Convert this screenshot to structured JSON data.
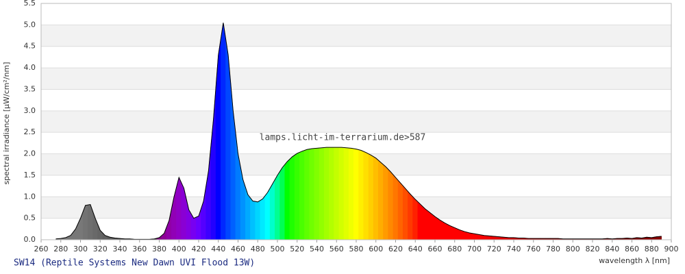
{
  "chart_data": {
    "type": "spectrum",
    "title": "SW14 (Reptile Systems New Dawn UVI Flood 13W)",
    "watermark": "lamps.licht-im-terrarium.de>587",
    "x_label": "wavelength λ [nm]",
    "y_label": "spectral irradiance [µW/cm²/nm]",
    "x": [
      275,
      280,
      285,
      290,
      295,
      300,
      305,
      310,
      315,
      320,
      325,
      330,
      335,
      340,
      345,
      350,
      355,
      360,
      365,
      370,
      375,
      380,
      385,
      390,
      395,
      400,
      405,
      410,
      415,
      420,
      425,
      430,
      435,
      440,
      445,
      450,
      455,
      460,
      465,
      470,
      475,
      480,
      485,
      490,
      495,
      500,
      505,
      510,
      515,
      520,
      525,
      530,
      535,
      540,
      545,
      550,
      555,
      560,
      565,
      570,
      575,
      580,
      585,
      590,
      595,
      600,
      605,
      610,
      615,
      620,
      625,
      630,
      635,
      640,
      645,
      650,
      655,
      660,
      665,
      670,
      675,
      680,
      685,
      690,
      695,
      700,
      705,
      710,
      715,
      720,
      725,
      730,
      735,
      740,
      745,
      750,
      755,
      760,
      765,
      770,
      775,
      780,
      785,
      790,
      795,
      800,
      805,
      810,
      815,
      820,
      825,
      830,
      835,
      840,
      845,
      850,
      855,
      860,
      865,
      870,
      875,
      880,
      885,
      890
    ],
    "values": [
      0.02,
      0.03,
      0.05,
      0.1,
      0.25,
      0.5,
      0.8,
      0.82,
      0.5,
      0.22,
      0.1,
      0.06,
      0.04,
      0.03,
      0.02,
      0.02,
      0.01,
      0.01,
      0.01,
      0.01,
      0.02,
      0.05,
      0.15,
      0.45,
      1.0,
      1.45,
      1.2,
      0.7,
      0.5,
      0.55,
      0.9,
      1.6,
      2.8,
      4.3,
      5.05,
      4.3,
      3.0,
      2.0,
      1.4,
      1.05,
      0.9,
      0.88,
      0.95,
      1.1,
      1.3,
      1.5,
      1.68,
      1.82,
      1.93,
      2.01,
      2.06,
      2.1,
      2.12,
      2.13,
      2.14,
      2.15,
      2.15,
      2.15,
      2.15,
      2.14,
      2.13,
      2.11,
      2.08,
      2.03,
      1.97,
      1.9,
      1.8,
      1.7,
      1.58,
      1.45,
      1.32,
      1.19,
      1.06,
      0.94,
      0.83,
      0.72,
      0.63,
      0.54,
      0.46,
      0.39,
      0.33,
      0.28,
      0.23,
      0.19,
      0.16,
      0.14,
      0.12,
      0.1,
      0.09,
      0.08,
      0.07,
      0.06,
      0.05,
      0.05,
      0.04,
      0.04,
      0.03,
      0.03,
      0.03,
      0.03,
      0.03,
      0.03,
      0.03,
      0.02,
      0.02,
      0.02,
      0.02,
      0.02,
      0.02,
      0.02,
      0.02,
      0.02,
      0.03,
      0.02,
      0.03,
      0.03,
      0.04,
      0.03,
      0.05,
      0.04,
      0.06,
      0.05,
      0.07,
      0.08
    ],
    "xlim": [
      260,
      900
    ],
    "xticks": [
      260,
      280,
      300,
      320,
      340,
      360,
      380,
      400,
      420,
      440,
      460,
      480,
      500,
      520,
      540,
      560,
      580,
      600,
      620,
      640,
      660,
      680,
      700,
      720,
      740,
      760,
      780,
      800,
      820,
      840,
      860,
      880,
      900
    ],
    "ylim": [
      0,
      5.5
    ],
    "yticks": [
      {
        "value": 0,
        "label": "0.0"
      },
      0.5,
      {
        "value": 1,
        "label": "1.0"
      },
      1.5,
      {
        "value": 2,
        "label": "2.0"
      },
      2.5,
      {
        "value": 3,
        "label": "3.0"
      },
      3.5,
      {
        "value": 4,
        "label": "4.0"
      },
      4.5,
      {
        "value": 5,
        "label": "5.0"
      },
      5.5
    ],
    "grid": true
  }
}
